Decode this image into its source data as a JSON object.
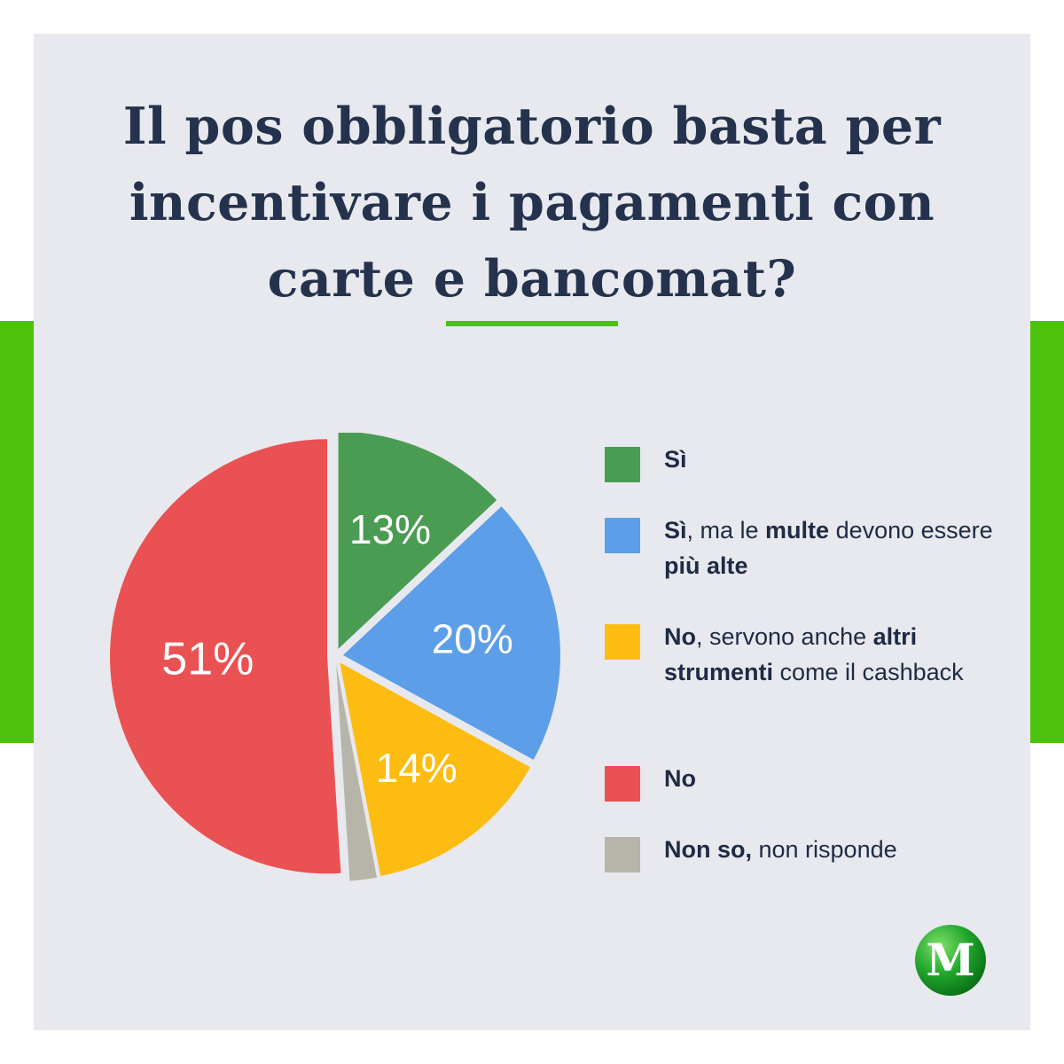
{
  "colors": {
    "background": "#e8e9ee",
    "accent": "#4dc20a",
    "title": "#25324d",
    "legend_text": "#1f2a44",
    "slice_label": "#ffffff"
  },
  "title": {
    "lines": [
      "Il pos obbligatorio basta per",
      "incentivare i pagamenti con",
      "carte e bancomat?"
    ]
  },
  "chart_data": {
    "type": "pie",
    "categories": [
      "Sì",
      "Sì, ma le multe devono essere più alte",
      "No, servono anche altri strumenti come il cashback",
      "Non so, non risponde",
      "No"
    ],
    "values": [
      13,
      20,
      14,
      2,
      51
    ],
    "labels": [
      "13%",
      "20%",
      "14%",
      "",
      "51%"
    ],
    "colors": [
      "#4a9c53",
      "#5c9ee8",
      "#fdbc11",
      "#b7b4aa",
      "#ea5153"
    ],
    "start_angle_deg": 0,
    "direction": "clockwise"
  },
  "legend": [
    {
      "color": "#4a9c53",
      "parts": [
        {
          "text": "Sì",
          "bold": true
        }
      ]
    },
    {
      "color": "#5c9ee8",
      "parts": [
        {
          "text": "Sì",
          "bold": true
        },
        {
          "text": ", ma le ",
          "bold": false
        },
        {
          "text": "multe",
          "bold": true
        },
        {
          "text": " devono essere ",
          "bold": false
        },
        {
          "text": "più alte",
          "bold": true
        }
      ]
    },
    {
      "color": "#fdbc11",
      "parts": [
        {
          "text": "No",
          "bold": true
        },
        {
          "text": ", servono anche ",
          "bold": false
        },
        {
          "text": "altri strumenti",
          "bold": true
        },
        {
          "text": " come il cashback",
          "bold": false
        }
      ]
    },
    {
      "color": "#ea5153",
      "parts": [
        {
          "text": "No",
          "bold": true
        }
      ]
    },
    {
      "color": "#b7b4aa",
      "parts": [
        {
          "text": "Non so,",
          "bold": true
        },
        {
          "text": " non risponde",
          "bold": false
        }
      ]
    }
  ],
  "logo": {
    "letter": "M",
    "color": "#1ea52a"
  }
}
